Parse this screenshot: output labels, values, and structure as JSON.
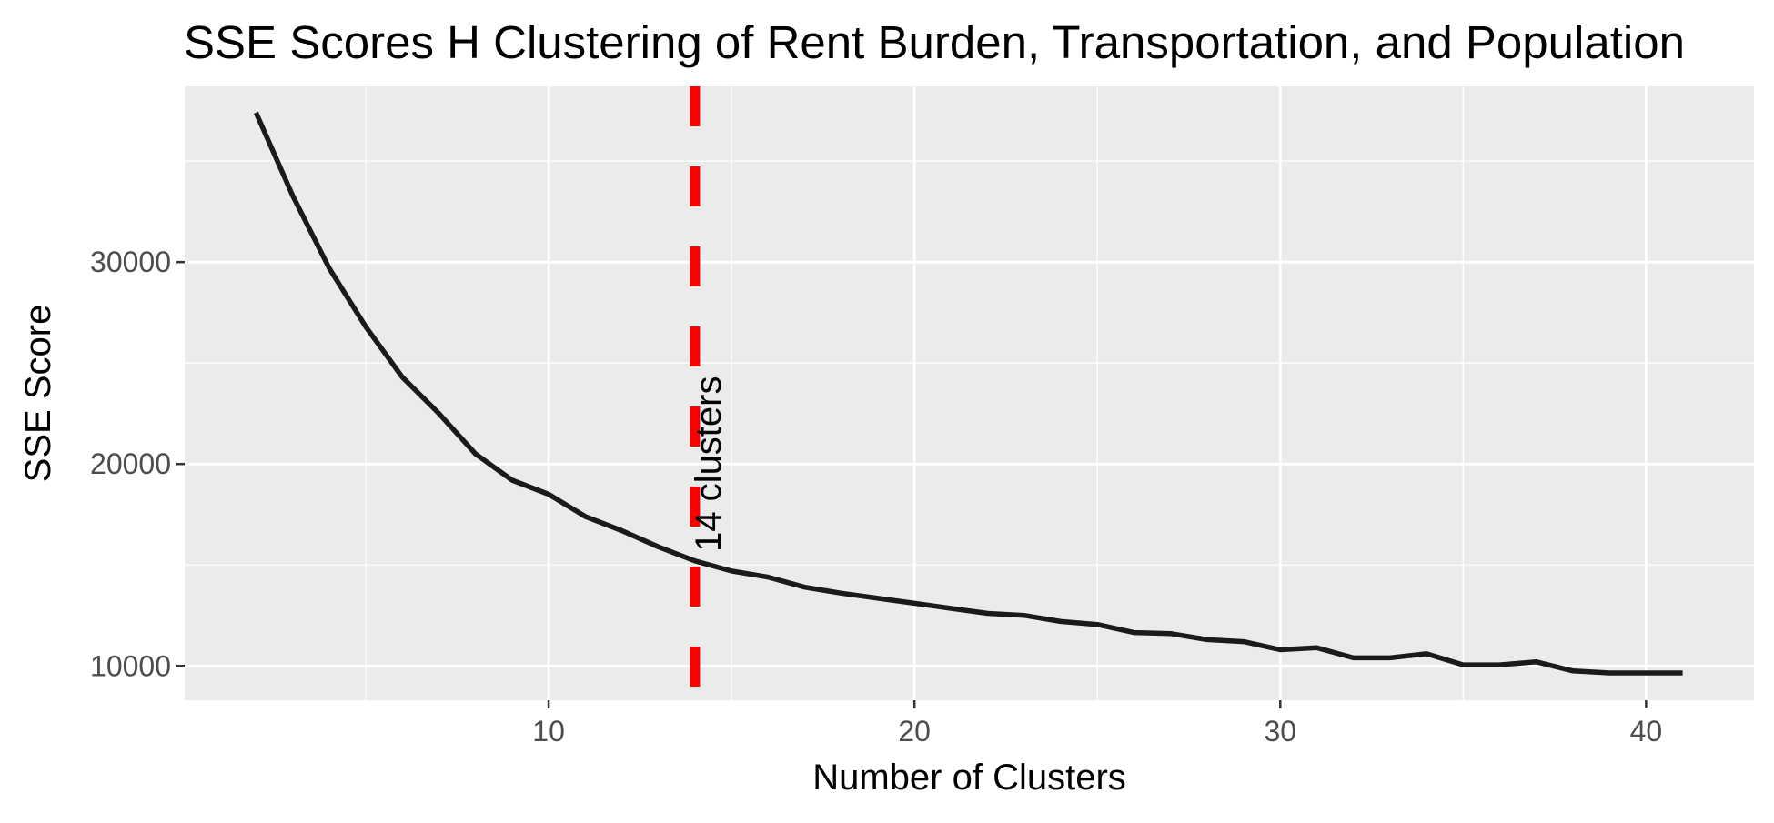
{
  "chart_data": {
    "type": "line",
    "title": "SSE Scores  H Clustering of Rent Burden, Transportation, and Population",
    "xlabel": "Number of Clusters",
    "ylabel": "SSE Score",
    "xlim": [
      0.05,
      42.95
    ],
    "ylim": [
      8300,
      38700
    ],
    "x_ticks": [
      10,
      20,
      30,
      40
    ],
    "x_tick_labels": [
      "10",
      "20",
      "30",
      "40"
    ],
    "y_ticks": [
      10000,
      20000,
      30000
    ],
    "y_tick_labels": [
      "10000",
      "20000",
      "30000"
    ],
    "grid": true,
    "series": [
      {
        "x": [
          2,
          3,
          4,
          5,
          6,
          7,
          8,
          9,
          10,
          11,
          12,
          13,
          14,
          15,
          16,
          17,
          18,
          19,
          20,
          21,
          22,
          23,
          24,
          25,
          26,
          27,
          28,
          29,
          30,
          31,
          32,
          33,
          34,
          35,
          36,
          37,
          38,
          39,
          40,
          41
        ],
        "values": [
          37400,
          33300,
          29700,
          26800,
          24300,
          22500,
          20500,
          19200,
          18500,
          17400,
          16700,
          15900,
          15200,
          14700,
          14400,
          13900,
          13600,
          13350,
          13100,
          12850,
          12600,
          12500,
          12200,
          12050,
          11650,
          11600,
          11300,
          11200,
          10800,
          10900,
          10400,
          10400,
          10600,
          10050,
          10050,
          10200,
          9750,
          9650,
          9650,
          9650
        ],
        "color": "#1a1a1a"
      }
    ],
    "vline": {
      "x": 14,
      "color": "#ff0000",
      "style": "dashed"
    },
    "annotation": {
      "x": 14.7,
      "y": 20000,
      "text": "14 clusters",
      "rotation": -90
    },
    "colors": {
      "panel_bg": "#ebebeb",
      "grid": "#ffffff",
      "text": "#000000",
      "tick_text": "#4d4d4d",
      "tick_mark": "#333333"
    }
  }
}
